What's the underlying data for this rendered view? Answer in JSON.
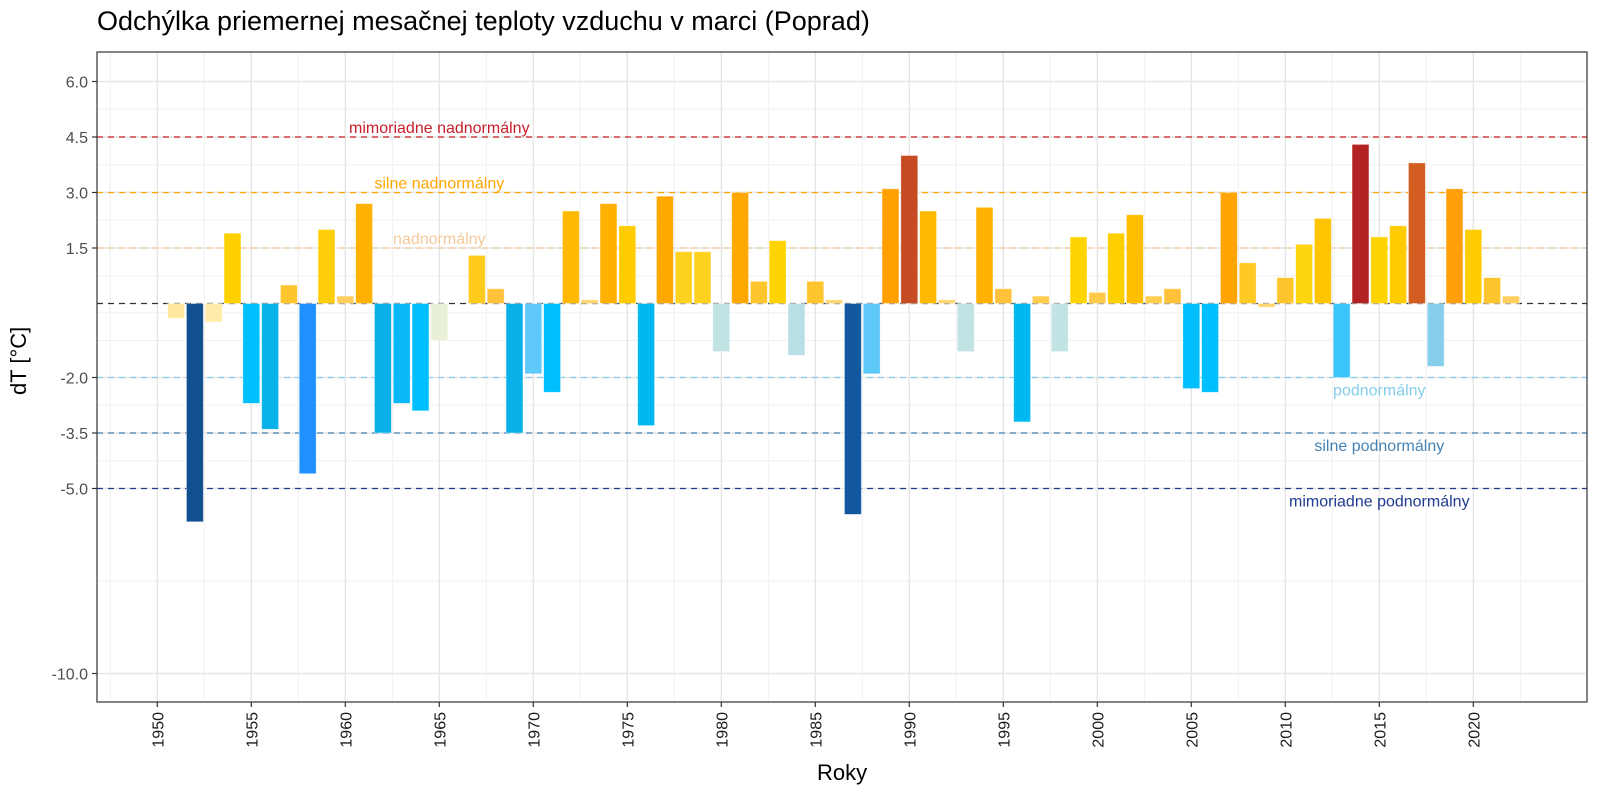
{
  "chart_data": {
    "type": "bar",
    "title": "Odchýlka priemernej mesačnej teploty vzduchu v marci (Poprad)",
    "xlabel": "Roky",
    "ylabel": "dT [°C]",
    "ylim": [
      -11.5,
      7.0
    ],
    "xlim": [
      1947,
      2025.5
    ],
    "grid": true,
    "y_ticks": [
      6.0,
      4.5,
      3.0,
      1.5,
      -2.0,
      -3.5,
      -5.0,
      -10.0
    ],
    "y_tick_labels": [
      "6.0",
      "4.5",
      "3.0",
      "1.5",
      "-2.0",
      "-3.5",
      "-5.0",
      "-10.0"
    ],
    "y_minor_grid": [
      5.25,
      3.75,
      2.25,
      0.75,
      -0.25,
      -1.0,
      -2.75,
      -4.25,
      -7.5
    ],
    "x_ticks": [
      1950,
      1955,
      1960,
      1965,
      1970,
      1975,
      1980,
      1985,
      1990,
      1995,
      2000,
      2005,
      2010,
      2015,
      2020
    ],
    "x_tick_labels": [
      "1950",
      "1955",
      "1960",
      "1965",
      "1970",
      "1975",
      "1980",
      "1985",
      "1990",
      "1995",
      "2000",
      "2005",
      "2010",
      "2015",
      "2020"
    ],
    "reference_lines": [
      {
        "value": 4.5,
        "label": "mimoriadne nadnormálny",
        "color": "#C8202A",
        "label_x": 1965,
        "label_pos": "above"
      },
      {
        "value": 3.0,
        "label": "silne nadnormálny",
        "color": "#FFA500",
        "label_x": 1965,
        "label_pos": "above"
      },
      {
        "value": 1.5,
        "label": "nadnormálny",
        "color": "#F5C99A",
        "label_x": 1965,
        "label_pos": "above"
      },
      {
        "value": 0.0,
        "label": "",
        "color": "#333333",
        "label_x": null,
        "label_pos": null
      },
      {
        "value": -2.0,
        "label": "podnormálny",
        "color": "#87CEEB",
        "label_x": 2015,
        "label_pos": "below"
      },
      {
        "value": -3.5,
        "label": "silne podnormálny",
        "color": "#4682B4",
        "label_x": 2015,
        "label_pos": "below"
      },
      {
        "value": -5.0,
        "label": "mimoriadne podnormálny",
        "color": "#1F3A8F",
        "label_x": 2015,
        "label_pos": "below"
      }
    ],
    "series": [
      {
        "name": "dT",
        "x": [
          1951,
          1952,
          1953,
          1954,
          1955,
          1956,
          1957,
          1958,
          1959,
          1960,
          1961,
          1962,
          1963,
          1964,
          1965,
          1966,
          1967,
          1968,
          1969,
          1970,
          1971,
          1972,
          1973,
          1974,
          1975,
          1976,
          1977,
          1978,
          1979,
          1980,
          1981,
          1982,
          1983,
          1984,
          1985,
          1986,
          1987,
          1988,
          1989,
          1990,
          1991,
          1992,
          1993,
          1994,
          1995,
          1996,
          1997,
          1998,
          1999,
          2000,
          2001,
          2002,
          2003,
          2004,
          2005,
          2006,
          2007,
          2008,
          2009,
          2010,
          2011,
          2012,
          2013,
          2014,
          2015,
          2016,
          2017,
          2018,
          2019,
          2020,
          2021,
          2022
        ],
        "values": [
          -0.4,
          -5.9,
          -0.5,
          1.9,
          -2.7,
          -3.4,
          0.5,
          -4.6,
          2.0,
          0.2,
          2.7,
          -3.5,
          -2.7,
          -2.9,
          -1.0,
          0.0,
          1.3,
          0.4,
          -3.5,
          -1.9,
          -2.4,
          2.5,
          0.1,
          2.7,
          2.1,
          -3.3,
          2.9,
          1.4,
          1.4,
          -1.3,
          3.0,
          0.6,
          1.7,
          -1.4,
          0.6,
          0.1,
          -5.7,
          -1.9,
          3.1,
          4.0,
          2.5,
          0.1,
          -1.3,
          2.6,
          0.4,
          -3.2,
          0.2,
          -1.3,
          1.8,
          0.3,
          1.9,
          2.4,
          0.2,
          0.4,
          -2.3,
          -2.4,
          3.0,
          1.1,
          -0.1,
          0.7,
          1.6,
          2.3,
          -2.0,
          4.3,
          1.8,
          2.1,
          3.8,
          -1.7,
          3.1,
          2.0,
          0.7,
          0.2
        ],
        "colors": [
          "#FFE8A0",
          "#11508E",
          "#FFECA8",
          "#FFD000",
          "#00BFFF",
          "#0AB2EA",
          "#FFC52C",
          "#1E90FF",
          "#FFCE0A",
          "#FFCE5C",
          "#FFB300",
          "#0AB0EA",
          "#0AB8F8",
          "#00BFFF",
          "#E8F0D8",
          "#FFFFFF",
          "#FFCC1E",
          "#FFC23A",
          "#0AB0EA",
          "#5EC8F8",
          "#00BFFF",
          "#FFB900",
          "#FFD66E",
          "#FFB000",
          "#FFCC00",
          "#00B8F0",
          "#FFA800",
          "#FFD21F",
          "#FFD21F",
          "#C2E3E3",
          "#FFA800",
          "#FFC52C",
          "#FFD400",
          "#B8DFE6",
          "#FFC52C",
          "#FFD66E",
          "#11589E",
          "#5EC8F8",
          "#FF9F00",
          "#C64B22",
          "#FFB900",
          "#FFD66E",
          "#C2E3E3",
          "#FFB300",
          "#FFC23A",
          "#00B8F0",
          "#FFCE4C",
          "#C2E3E3",
          "#FFD400",
          "#FFC94A",
          "#FFD000",
          "#FFBE00",
          "#FFCE4C",
          "#FFC23A",
          "#00BFFF",
          "#00BFFF",
          "#FFA400",
          "#FFCA24",
          "#FFD66E",
          "#FFC52C",
          "#FFD410",
          "#FFC400",
          "#3BC4FA",
          "#B22222",
          "#FFD400",
          "#FFCC00",
          "#D35C21",
          "#87CEEB",
          "#FF9F0A",
          "#FFCC00",
          "#FFC52C",
          "#FFCE5C"
        ]
      }
    ]
  }
}
